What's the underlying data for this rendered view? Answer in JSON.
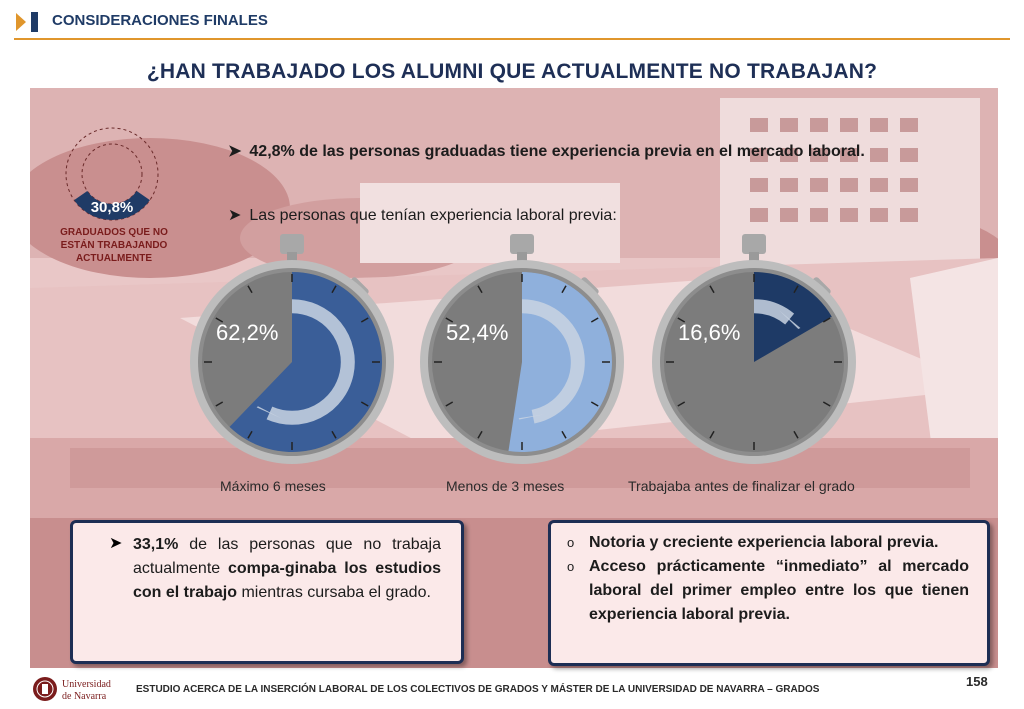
{
  "header": {
    "section_title": "CONSIDERACIONES FINALES"
  },
  "title": "¿HAN TRABAJADO LOS ALUMNI QUE ACTUALMENTE NO TRABAJAN?",
  "kpi": {
    "value": "30,8%",
    "label": "GRADUADOS QUE NO ESTÁN TRABAJANDO ACTUALMENTE",
    "fraction": 0.308
  },
  "bullets": [
    "42,8% de las personas graduadas tiene experiencia previa en el mercado laboral.",
    "Las personas que tenían experiencia laboral previa:"
  ],
  "stopwatches": [
    {
      "value": "62,2%",
      "fraction": 0.622,
      "label": "Máximo 6 meses",
      "color": "#3a5e98"
    },
    {
      "value": "52,4%",
      "fraction": 0.524,
      "label": "Menos de 3 meses",
      "color": "#8fb0dc"
    },
    {
      "value": "16,6%",
      "fraction": 0.166,
      "label": "Trabajaba antes de finalizar el grado",
      "color": "#1e3a66"
    }
  ],
  "callout_left": {
    "pre": "33,1%",
    "text1": " de las personas que no trabaja actualmente ",
    "bold": "compa-ginaba los estudios con el trabajo",
    "text2": " mientras cursaba el grado."
  },
  "callout_right": [
    "Notoria y creciente experiencia laboral previa.",
    "Acceso prácticamente “inmediato” al mercado laboral del primer empleo entre los que tienen experiencia laboral previa."
  ],
  "footer": {
    "logo_line1": "Universidad",
    "logo_line2": "de Navarra",
    "text": "ESTUDIO ACERCA DE LA INSERCIÓN LABORAL DE LOS COLECTIVOS DE GRADOS Y MÁSTER DE LA UNIVERSIDAD DE NAVARRA – GRADOS",
    "page": "158"
  }
}
